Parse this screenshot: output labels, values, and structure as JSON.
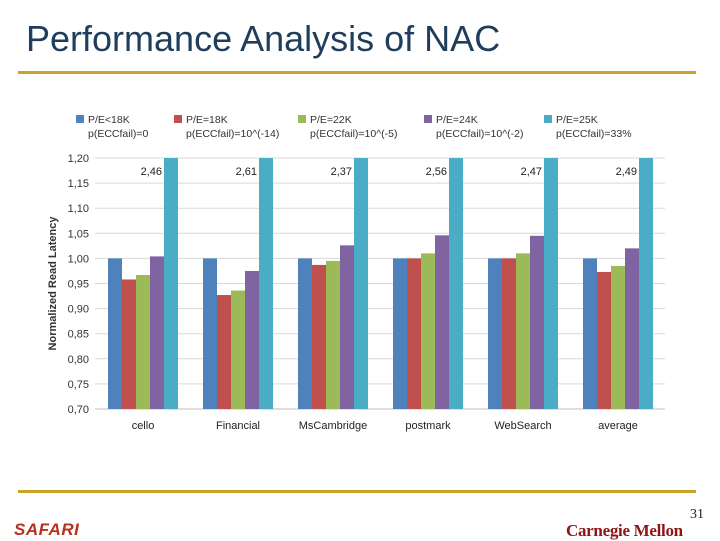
{
  "slide": {
    "title": "Performance Analysis of NAC",
    "footer_left": "SAFARI",
    "footer_right": "Carnegie Mellon",
    "page_number": "31",
    "rule_color": "#c9a227"
  },
  "chart_data": {
    "type": "bar",
    "title": "",
    "xlabel": "",
    "ylabel": "Normalized Read Latency",
    "ylim": [
      0.7,
      1.2
    ],
    "ytick_labels": [
      "1,20",
      "1,15",
      "1,10",
      "1,05",
      "1,00",
      "0,95",
      "0,90",
      "0,85",
      "0,80",
      "0,75",
      "0,70"
    ],
    "grid": true,
    "legend_position": "top",
    "categories": [
      "cello",
      "Financial",
      "MsCambridge",
      "postmark",
      "WebSearch",
      "average"
    ],
    "series": [
      {
        "name": "P/E<18K",
        "subtitle": "p(ECCfail)=0",
        "color": "#4f81bd",
        "values": [
          1.0,
          1.0,
          1.0,
          1.0,
          1.0,
          1.0
        ]
      },
      {
        "name": "P/E=18K",
        "subtitle": "p(ECCfail)=10^(-14)",
        "color": "#c0504d",
        "values": [
          0.958,
          0.927,
          0.987,
          1.0,
          1.0,
          0.973
        ]
      },
      {
        "name": "P/E=22K",
        "subtitle": "p(ECCfail)=10^(-5)",
        "color": "#9bbb59",
        "values": [
          0.967,
          0.936,
          0.995,
          1.01,
          1.01,
          0.985
        ]
      },
      {
        "name": "P/E=24K",
        "subtitle": "p(ECCfail)=10^(-2)",
        "color": "#8064a2",
        "values": [
          1.004,
          0.975,
          1.026,
          1.046,
          1.045,
          1.02
        ]
      },
      {
        "name": "P/E=25K",
        "subtitle": "p(ECCfail)=33%",
        "color": "#4bacc6",
        "values": [
          2.46,
          2.61,
          2.37,
          2.56,
          2.47,
          2.49
        ]
      }
    ],
    "overflow_labels": [
      "2,46",
      "2,61",
      "2,37",
      "2,56",
      "2,47",
      "2,49"
    ]
  }
}
